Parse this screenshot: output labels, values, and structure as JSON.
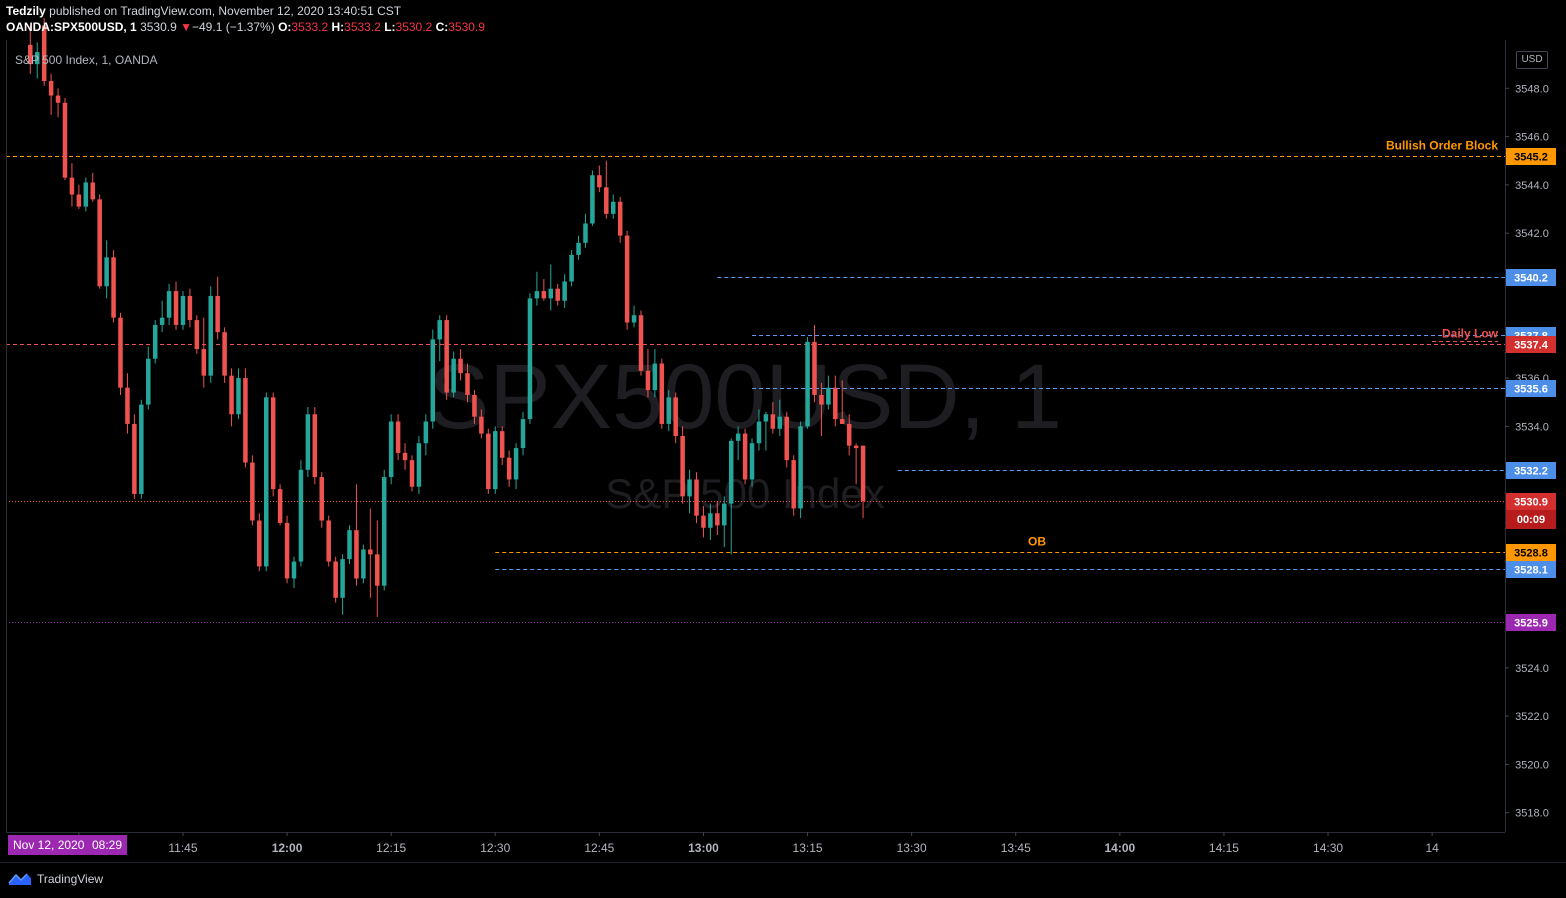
{
  "header": {
    "author": "Tedzily",
    "published": "published on TradingView.com, November 12, 2020 13:40:51 CST",
    "symbol": "OANDA:SPX500USD, 1",
    "last": "3530.9",
    "change": "−49.1 (−1.37%)",
    "o_label": "O:",
    "o": "3533.2",
    "h_label": "H:",
    "h": "3533.2",
    "l_label": "L:",
    "l": "3530.2",
    "c_label": "C:",
    "c": "3530.9"
  },
  "legend": "S&P 500 Index, 1, OANDA",
  "watermark": {
    "symbol": "SPX500USD, 1",
    "name": "S&P 500 Index"
  },
  "currency": "USD",
  "footer": {
    "brand": "TradingView"
  },
  "colors": {
    "up": "#26a69a",
    "down": "#ef5350",
    "background": "#000000",
    "orange": "#ff9800",
    "blue": "#5b9cf6",
    "purple": "#9c27b0"
  },
  "chart_data": {
    "type": "candlestick",
    "ylim": [
      3517.2,
      3550.0
    ],
    "y_ticks": [
      3518,
      3520,
      3522,
      3524,
      3526,
      3528,
      3530,
      3532,
      3534,
      3536,
      3538,
      3540,
      3542,
      3544,
      3546,
      3548
    ],
    "y_tick_labels": [
      "3518.0",
      "3520.0",
      "3522.0",
      "3524.0",
      "",
      "",
      "",
      "",
      "3534.0",
      "3536.0",
      "",
      "",
      "3542.0",
      "3544.0",
      "3546.0",
      "3548.0"
    ],
    "x_start": "11:23",
    "x_ticks": [
      "11:30",
      "11:45",
      "12:00",
      "12:15",
      "12:30",
      "12:45",
      "13:00",
      "13:15",
      "13:30",
      "13:45",
      "14:00",
      "14:15",
      "14:30",
      "14"
    ],
    "x_tick_minutes": [
      690,
      705,
      720,
      735,
      750,
      765,
      780,
      795,
      810,
      825,
      840,
      855,
      870,
      885
    ],
    "x_range_minutes": [
      679.5,
      895.5
    ],
    "cursor_date_label": "Nov 12, 2020",
    "cursor_time_label": "08:29",
    "candles": [
      [
        3549.8,
        3550.6,
        3548.6,
        3549.0
      ],
      [
        3549.0,
        3549.9,
        3548.4,
        3549.5
      ],
      [
        3550.6,
        3550.9,
        3548.1,
        3548.3
      ],
      [
        3548.3,
        3548.6,
        3546.9,
        3547.7
      ],
      [
        3547.7,
        3548.0,
        3546.8,
        3547.4
      ],
      [
        3547.4,
        3547.6,
        3544.2,
        3544.3
      ],
      [
        3544.3,
        3544.9,
        3543.1,
        3543.6
      ],
      [
        3543.6,
        3544.0,
        3543.0,
        3543.1
      ],
      [
        3543.1,
        3544.3,
        3542.9,
        3544.1
      ],
      [
        3544.1,
        3544.5,
        3543.3,
        3543.4
      ],
      [
        3543.4,
        3543.6,
        3539.7,
        3539.8
      ],
      [
        3539.8,
        3541.7,
        3539.3,
        3541.0
      ],
      [
        3541.0,
        3541.3,
        3538.3,
        3538.5
      ],
      [
        3538.5,
        3538.7,
        3535.3,
        3535.6
      ],
      [
        3535.6,
        3536.2,
        3533.7,
        3534.1
      ],
      [
        3534.1,
        3534.5,
        3531.0,
        3531.2
      ],
      [
        3531.2,
        3535.1,
        3531.0,
        3534.9
      ],
      [
        3534.9,
        3537.3,
        3534.7,
        3536.8
      ],
      [
        3536.8,
        3538.4,
        3536.6,
        3538.2
      ],
      [
        3538.2,
        3539.2,
        3537.9,
        3538.5
      ],
      [
        3538.5,
        3539.9,
        3538.2,
        3539.6
      ],
      [
        3539.6,
        3540.0,
        3538.0,
        3538.2
      ],
      [
        3538.2,
        3539.6,
        3538.0,
        3539.4
      ],
      [
        3539.4,
        3539.7,
        3538.1,
        3538.4
      ],
      [
        3538.4,
        3538.6,
        3537.0,
        3537.2
      ],
      [
        3537.2,
        3538.5,
        3535.6,
        3536.1
      ],
      [
        3536.1,
        3539.8,
        3535.8,
        3539.4
      ],
      [
        3539.4,
        3540.2,
        3537.6,
        3537.9
      ],
      [
        3537.9,
        3538.1,
        3535.8,
        3536.1
      ],
      [
        3536.1,
        3536.4,
        3534.0,
        3534.5
      ],
      [
        3534.5,
        3536.4,
        3534.3,
        3536.0
      ],
      [
        3536.0,
        3536.4,
        3532.3,
        3532.5
      ],
      [
        3532.5,
        3532.8,
        3529.9,
        3530.1
      ],
      [
        3530.1,
        3530.4,
        3528.0,
        3528.2
      ],
      [
        3528.2,
        3535.4,
        3528.0,
        3535.2
      ],
      [
        3535.2,
        3535.4,
        3531.1,
        3531.4
      ],
      [
        3531.4,
        3531.6,
        3529.9,
        3530.0
      ],
      [
        3530.0,
        3530.3,
        3527.5,
        3527.7
      ],
      [
        3527.7,
        3528.6,
        3527.3,
        3528.4
      ],
      [
        3528.4,
        3532.6,
        3528.2,
        3532.2
      ],
      [
        3532.2,
        3534.8,
        3531.9,
        3534.5
      ],
      [
        3534.5,
        3534.8,
        3531.6,
        3531.9
      ],
      [
        3531.9,
        3532.1,
        3529.8,
        3530.1
      ],
      [
        3530.1,
        3530.3,
        3528.2,
        3528.4
      ],
      [
        3528.4,
        3528.6,
        3526.7,
        3526.9
      ],
      [
        3526.9,
        3528.7,
        3526.2,
        3528.5
      ],
      [
        3528.5,
        3529.9,
        3528.3,
        3529.7
      ],
      [
        3529.7,
        3531.6,
        3527.4,
        3527.7
      ],
      [
        3527.7,
        3529.1,
        3527.5,
        3528.9
      ],
      [
        3528.9,
        3530.6,
        3526.9,
        3528.7
      ],
      [
        3528.7,
        3530.1,
        3526.1,
        3527.4
      ],
      [
        3527.4,
        3532.2,
        3527.2,
        3531.9
      ],
      [
        3531.9,
        3534.5,
        3531.6,
        3534.2
      ],
      [
        3534.2,
        3534.5,
        3532.6,
        3532.9
      ],
      [
        3532.9,
        3533.3,
        3532.2,
        3532.6
      ],
      [
        3532.6,
        3532.8,
        3531.3,
        3531.5
      ],
      [
        3531.5,
        3533.6,
        3531.2,
        3533.3
      ],
      [
        3533.3,
        3534.5,
        3532.8,
        3534.2
      ],
      [
        3534.2,
        3538.0,
        3533.9,
        3537.6
      ],
      [
        3537.6,
        3538.6,
        3536.7,
        3538.4
      ],
      [
        3538.4,
        3538.6,
        3535.1,
        3535.4
      ],
      [
        3535.4,
        3537.1,
        3535.2,
        3536.8
      ],
      [
        3536.8,
        3537.2,
        3535.9,
        3536.2
      ],
      [
        3536.2,
        3536.6,
        3535.0,
        3535.3
      ],
      [
        3535.3,
        3535.5,
        3534.1,
        3534.4
      ],
      [
        3534.4,
        3534.7,
        3533.5,
        3533.7
      ],
      [
        3533.7,
        3533.9,
        3531.2,
        3531.4
      ],
      [
        3531.4,
        3534.0,
        3531.2,
        3533.8
      ],
      [
        3533.8,
        3534.0,
        3532.4,
        3532.7
      ],
      [
        3532.7,
        3533.0,
        3531.5,
        3531.8
      ],
      [
        3531.8,
        3533.3,
        3531.4,
        3533.1
      ],
      [
        3533.1,
        3534.6,
        3532.8,
        3534.3
      ],
      [
        3534.3,
        3539.5,
        3534.1,
        3539.3
      ],
      [
        3539.3,
        3540.4,
        3539.0,
        3539.6
      ],
      [
        3539.6,
        3540.1,
        3539.2,
        3539.3
      ],
      [
        3539.3,
        3540.7,
        3538.8,
        3539.7
      ],
      [
        3539.7,
        3539.9,
        3539.0,
        3539.2
      ],
      [
        3539.2,
        3540.3,
        3538.9,
        3540.0
      ],
      [
        3540.0,
        3541.3,
        3539.8,
        3541.1
      ],
      [
        3541.1,
        3541.9,
        3540.9,
        3541.6
      ],
      [
        3541.6,
        3542.8,
        3541.4,
        3542.4
      ],
      [
        3542.4,
        3544.6,
        3542.3,
        3544.4
      ],
      [
        3544.4,
        3544.8,
        3543.7,
        3543.9
      ],
      [
        3543.9,
        3545.0,
        3542.6,
        3542.8
      ],
      [
        3542.8,
        3543.6,
        3542.6,
        3543.3
      ],
      [
        3543.3,
        3543.5,
        3541.6,
        3541.9
      ],
      [
        3541.9,
        3542.1,
        3538.0,
        3538.3
      ],
      [
        3538.3,
        3539.0,
        3538.1,
        3538.6
      ],
      [
        3538.6,
        3538.8,
        3536.1,
        3536.3
      ],
      [
        3536.3,
        3537.2,
        3535.2,
        3535.5
      ],
      [
        3535.5,
        3537.2,
        3535.2,
        3536.6
      ],
      [
        3536.6,
        3536.8,
        3533.9,
        3534.1
      ],
      [
        3534.1,
        3535.5,
        3533.8,
        3535.2
      ],
      [
        3535.2,
        3535.4,
        3533.3,
        3533.6
      ],
      [
        3533.6,
        3534.0,
        3530.8,
        3531.1
      ],
      [
        3531.1,
        3532.2,
        3530.4,
        3531.8
      ],
      [
        3531.8,
        3532.1,
        3530.0,
        3530.3
      ],
      [
        3530.3,
        3530.7,
        3529.4,
        3529.8
      ],
      [
        3529.8,
        3530.8,
        3529.3,
        3530.4
      ],
      [
        3530.4,
        3530.9,
        3529.5,
        3529.9
      ],
      [
        3529.9,
        3531.1,
        3529.0,
        3530.8
      ],
      [
        3530.8,
        3533.5,
        3528.7,
        3533.4
      ],
      [
        3533.4,
        3534.0,
        3532.6,
        3533.7
      ],
      [
        3533.7,
        3533.9,
        3531.6,
        3531.8
      ],
      [
        3531.8,
        3533.5,
        3531.5,
        3533.3
      ],
      [
        3533.3,
        3534.7,
        3533.0,
        3534.2
      ],
      [
        3534.2,
        3534.6,
        3533.0,
        3534.5
      ],
      [
        3534.5,
        3535.0,
        3533.7,
        3533.9
      ],
      [
        3533.9,
        3535.1,
        3533.6,
        3534.4
      ],
      [
        3534.4,
        3534.6,
        3532.3,
        3532.6
      ],
      [
        3532.6,
        3532.8,
        3530.3,
        3530.6
      ],
      [
        3530.6,
        3534.2,
        3530.2,
        3534.0
      ],
      [
        3534.0,
        3537.7,
        3533.9,
        3537.5
      ],
      [
        3537.5,
        3538.2,
        3535.0,
        3535.3
      ],
      [
        3535.3,
        3535.8,
        3533.6,
        3534.9
      ],
      [
        3534.9,
        3536.1,
        3534.7,
        3535.6
      ],
      [
        3535.6,
        3536.1,
        3534.0,
        3534.3
      ],
      [
        3534.3,
        3535.9,
        3534.1,
        3534.1
      ],
      [
        3534.1,
        3534.5,
        3532.8,
        3533.2
      ],
      [
        3533.2,
        3533.3,
        3531.6,
        3533.1
      ],
      [
        3533.2,
        3533.2,
        3530.2,
        3530.9
      ]
    ],
    "levels": [
      {
        "price": 3545.2,
        "label": "3545.2",
        "color": "#ff9800",
        "style": "dashed",
        "from_min": 679.5,
        "text": "Bullish Order Block"
      },
      {
        "price": 3540.2,
        "label": "3540.2",
        "color": "#5b9cf6",
        "style": "dashed",
        "from_min": 782
      },
      {
        "price": 3537.8,
        "label": "3537.8",
        "color": "#5b9cf6",
        "style": "dashed",
        "from_min": 787
      },
      {
        "price": 3537.4,
        "label": "3537.4",
        "color": "#ef5350",
        "style": "dashed",
        "from_min": 679.5,
        "text": "Daily Low"
      },
      {
        "price": 3535.6,
        "label": "3535.6",
        "color": "#5b9cf6",
        "style": "dashed",
        "from_min": 787
      },
      {
        "price": 3532.2,
        "label": "3532.2",
        "color": "#5b9cf6",
        "style": "dashed",
        "from_min": 808
      },
      {
        "price": 3530.9,
        "label": "3530.9",
        "color": "#ef5350",
        "style": "dotted",
        "from_min": 679.5,
        "sub": "00:09"
      },
      {
        "price": 3528.8,
        "label": "3528.8",
        "color": "#ff9800",
        "style": "dashed",
        "from_min": 750,
        "text": "OB"
      },
      {
        "price": 3528.1,
        "label": "3528.1",
        "color": "#5b9cf6",
        "style": "dashed",
        "from_min": 750
      },
      {
        "price": 3525.9,
        "label": "3525.9",
        "color": "#9c27b0",
        "style": "dotted",
        "from_min": 679.5
      }
    ],
    "grid": false
  }
}
